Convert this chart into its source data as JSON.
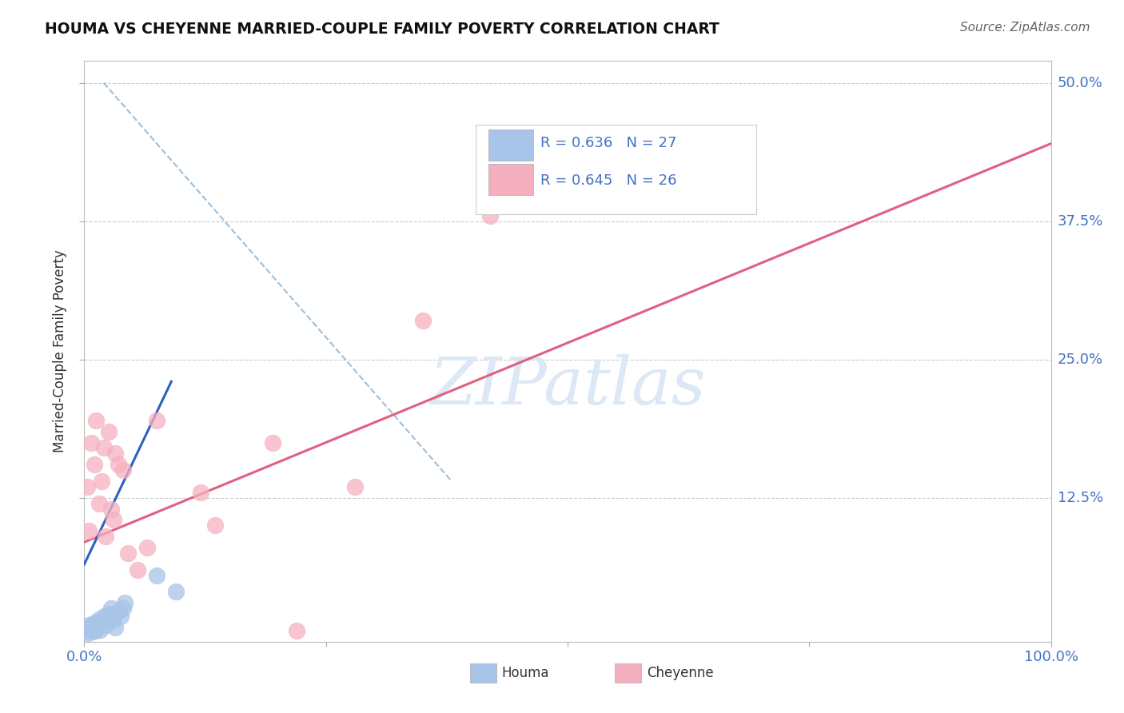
{
  "title": "HOUMA VS CHEYENNE MARRIED-COUPLE FAMILY POVERTY CORRELATION CHART",
  "source": "Source: ZipAtlas.com",
  "ylabel": "Married-Couple Family Poverty",
  "xlim": [
    0.0,
    1.0
  ],
  "ylim": [
    -0.005,
    0.52
  ],
  "houma_R": 0.636,
  "houma_N": 27,
  "cheyenne_R": 0.645,
  "cheyenne_N": 26,
  "houma_color": "#a8c4e8",
  "cheyenne_color": "#f5b0c0",
  "houma_line_color": "#3060c0",
  "cheyenne_line_color": "#e06080",
  "dashed_line_color": "#90b8d8",
  "watermark_color": "#dce8f5",
  "background_color": "#ffffff",
  "grid_color": "#cccccc",
  "houma_x": [
    0.002,
    0.003,
    0.004,
    0.005,
    0.006,
    0.007,
    0.008,
    0.009,
    0.01,
    0.011,
    0.012,
    0.013,
    0.015,
    0.016,
    0.018,
    0.02,
    0.022,
    0.025,
    0.028,
    0.03,
    0.032,
    0.035,
    0.038,
    0.04,
    0.042,
    0.075,
    0.095
  ],
  "houma_y": [
    0.005,
    0.008,
    0.003,
    0.01,
    0.006,
    0.007,
    0.004,
    0.009,
    0.012,
    0.005,
    0.008,
    0.01,
    0.015,
    0.006,
    0.012,
    0.018,
    0.01,
    0.02,
    0.025,
    0.015,
    0.008,
    0.022,
    0.018,
    0.025,
    0.03,
    0.055,
    0.04
  ],
  "cheyenne_x": [
    0.003,
    0.005,
    0.007,
    0.01,
    0.012,
    0.015,
    0.018,
    0.02,
    0.022,
    0.025,
    0.028,
    0.03,
    0.032,
    0.035,
    0.04,
    0.045,
    0.055,
    0.065,
    0.075,
    0.12,
    0.135,
    0.195,
    0.22,
    0.28,
    0.35,
    0.42
  ],
  "cheyenne_y": [
    0.135,
    0.095,
    0.175,
    0.155,
    0.195,
    0.12,
    0.14,
    0.17,
    0.09,
    0.185,
    0.115,
    0.105,
    0.165,
    0.155,
    0.15,
    0.075,
    0.06,
    0.08,
    0.195,
    0.13,
    0.1,
    0.175,
    0.005,
    0.135,
    0.285,
    0.38
  ],
  "houma_trendline_x": [
    0.0,
    0.09
  ],
  "houma_trendline_y": [
    0.065,
    0.23
  ],
  "cheyenne_trendline_x": [
    0.0,
    1.0
  ],
  "cheyenne_trendline_y": [
    0.085,
    0.445
  ],
  "dashed_line_x": [
    0.02,
    0.38
  ],
  "dashed_line_y": [
    0.5,
    0.14
  ]
}
